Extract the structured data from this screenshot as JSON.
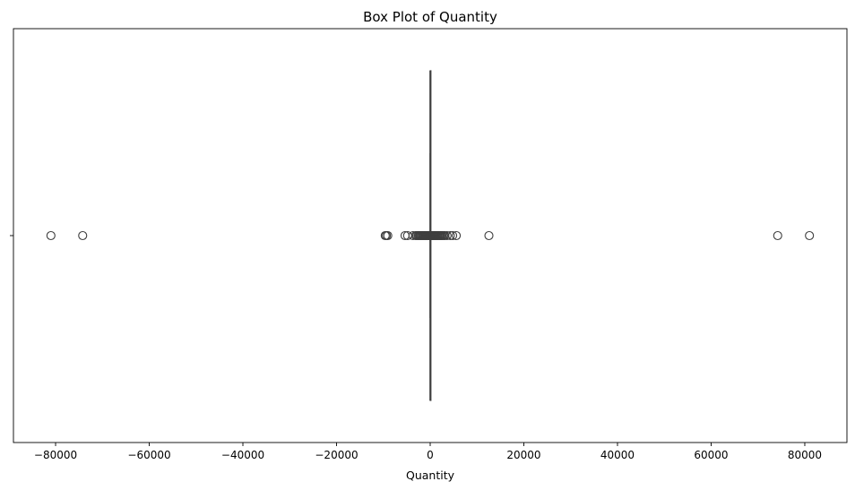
{
  "chart_data": {
    "type": "box",
    "orientation": "horizontal",
    "title": "Box Plot of Quantity",
    "xlabel": "Quantity",
    "ylabel": "",
    "xlim": [
      -89000,
      89000
    ],
    "xticks": [
      -80000,
      -60000,
      -40000,
      -20000,
      0,
      20000,
      40000,
      60000,
      80000
    ],
    "xtick_labels": [
      "−80000",
      "−60000",
      "−40000",
      "−20000",
      "0",
      "20000",
      "40000",
      "60000",
      "80000"
    ],
    "grid": false,
    "legend": false,
    "colors": {
      "line": "#3f3f3f",
      "marker_edge": "#3f3f3f",
      "marker_face": "none"
    },
    "box": {
      "whisker_low": -13,
      "q1": 1,
      "median": 3,
      "q3": 10,
      "whisker_high": 29
    },
    "outliers": [
      -80995,
      -74215,
      -9600,
      -9360,
      -9058,
      -5368,
      -4830,
      -3667,
      -3114,
      -2880,
      -2600,
      -2400,
      -2200,
      -2000,
      -1800,
      -1600,
      -1400,
      -1200,
      -1000,
      -800,
      -600,
      -400,
      -200,
      -100,
      100,
      200,
      400,
      600,
      800,
      1000,
      1200,
      1400,
      1600,
      1800,
      2000,
      2200,
      2400,
      2600,
      2880,
      3114,
      3600,
      4300,
      4800,
      5568,
      12540,
      74215,
      80995
    ]
  }
}
